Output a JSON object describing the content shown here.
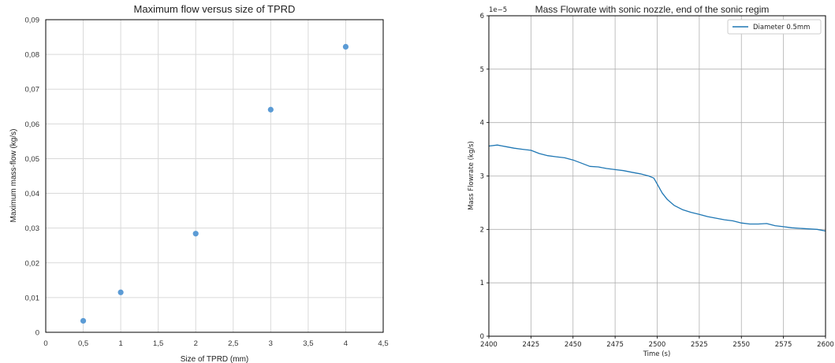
{
  "chart_data": [
    {
      "type": "scatter",
      "title": "Maximum flow versus size of TPRD",
      "xlabel": "Size of TPRD (mm)",
      "ylabel": "Maximum mass-flow (kg/s)",
      "xlim": [
        0,
        4.5
      ],
      "ylim": [
        0,
        0.09
      ],
      "x_ticks": [
        "0",
        "0,5",
        "1",
        "1,5",
        "2",
        "2,5",
        "3",
        "3,5",
        "4",
        "4,5"
      ],
      "y_ticks": [
        "0",
        "0,01",
        "0,02",
        "0,03",
        "0,04",
        "0,05",
        "0,06",
        "0,07",
        "0,08",
        "0,09"
      ],
      "grid": true,
      "color": "#5b9bd5",
      "points": [
        {
          "x": 0.5,
          "y": 0.0033
        },
        {
          "x": 1,
          "y": 0.0115
        },
        {
          "x": 2,
          "y": 0.0284
        },
        {
          "x": 3,
          "y": 0.0641
        },
        {
          "x": 4,
          "y": 0.0822
        }
      ]
    },
    {
      "type": "line",
      "title": "Mass Flowrate with sonic nozzle, end of the sonic regim",
      "xlabel": "Time (s)",
      "ylabel": "Mass Flowrate (kg/s)",
      "y_offset_label": "1e−5",
      "xlim": [
        2400,
        2600
      ],
      "ylim": [
        0,
        6
      ],
      "x_ticks": [
        "2400",
        "2425",
        "2450",
        "2475",
        "2500",
        "2525",
        "2550",
        "2575",
        "2600"
      ],
      "y_ticks": [
        "0",
        "1",
        "2",
        "3",
        "4",
        "5",
        "6"
      ],
      "grid": true,
      "legend_position": "top-right",
      "series": [
        {
          "name": "Diameter 0.5mm",
          "color": "#1f77b4",
          "x": [
            2400,
            2405,
            2410,
            2415,
            2420,
            2425,
            2430,
            2435,
            2440,
            2445,
            2450,
            2455,
            2460,
            2465,
            2470,
            2475,
            2480,
            2485,
            2490,
            2495,
            2498,
            2500,
            2503,
            2506,
            2510,
            2515,
            2520,
            2525,
            2530,
            2535,
            2540,
            2545,
            2550,
            2555,
            2560,
            2565,
            2570,
            2575,
            2580,
            2585,
            2590,
            2595,
            2600
          ],
          "y": [
            3.56,
            3.58,
            3.55,
            3.52,
            3.5,
            3.48,
            3.42,
            3.38,
            3.36,
            3.34,
            3.3,
            3.24,
            3.18,
            3.17,
            3.14,
            3.12,
            3.1,
            3.07,
            3.04,
            3.0,
            2.96,
            2.85,
            2.68,
            2.56,
            2.45,
            2.37,
            2.32,
            2.28,
            2.24,
            2.21,
            2.18,
            2.16,
            2.12,
            2.1,
            2.1,
            2.11,
            2.07,
            2.05,
            2.03,
            2.02,
            2.01,
            2.0,
            1.97
          ]
        }
      ]
    }
  ]
}
